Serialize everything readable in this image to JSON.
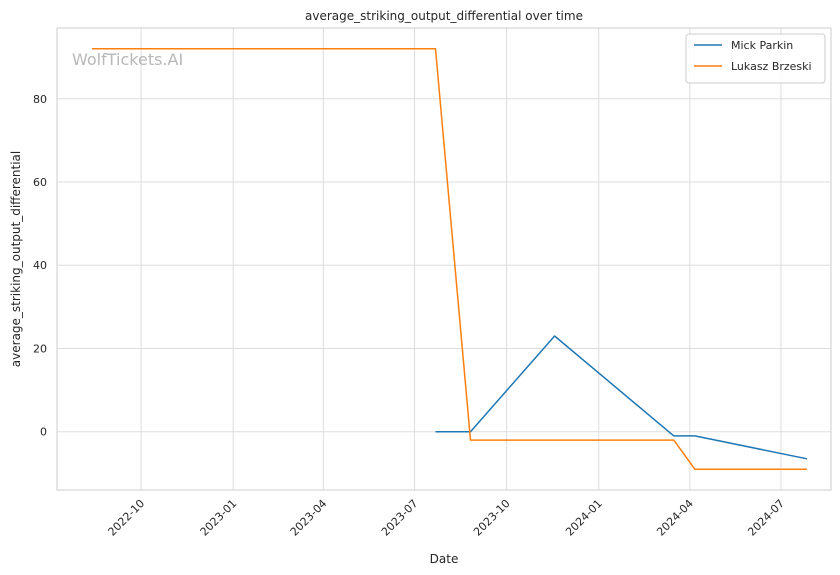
{
  "chart_data": {
    "type": "line",
    "title": "average_striking_output_differential over time",
    "xlabel": "Date",
    "ylabel": "average_striking_output_differential",
    "watermark": "WolfTickets.AI",
    "x_ticks": [
      "2022-10",
      "2023-01",
      "2023-04",
      "2023-07",
      "2023-10",
      "2024-01",
      "2024-04",
      "2024-07"
    ],
    "y_ticks": [
      0,
      20,
      40,
      60,
      80
    ],
    "xlim": [
      "2022-07-09",
      "2024-08-20"
    ],
    "ylim": [
      -14,
      97
    ],
    "grid": true,
    "legend_position": "top-right",
    "series": [
      {
        "name": "Mick Parkin",
        "color": "#1f77b4",
        "points": [
          [
            "2023-07-22",
            0
          ],
          [
            "2023-08-26",
            0
          ],
          [
            "2023-11-18",
            23
          ],
          [
            "2024-03-16",
            -1
          ],
          [
            "2024-04-06",
            -1
          ],
          [
            "2024-07-27",
            -6.5
          ]
        ]
      },
      {
        "name": "Lukasz Brzeski",
        "color": "#ff7f0e",
        "points": [
          [
            "2022-08-13",
            92
          ],
          [
            "2023-07-22",
            92
          ],
          [
            "2023-08-26",
            -2
          ],
          [
            "2024-03-16",
            -2
          ],
          [
            "2024-04-06",
            -9
          ],
          [
            "2024-07-27",
            -9
          ]
        ]
      }
    ]
  }
}
